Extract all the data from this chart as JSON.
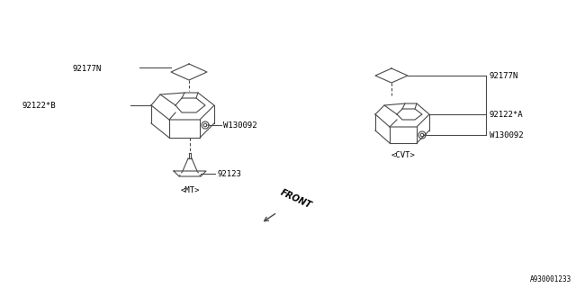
{
  "bg_color": "#ffffff",
  "line_color": "#4a4a4a",
  "text_color": "#000000",
  "font_size": 6.5,
  "diagram_number": "A930001233",
  "labels": {
    "mt": "<MT>",
    "cvt": "<CVT>",
    "front": "FRONT",
    "92177N_mt": "92177N",
    "92122B_mt": "92122*B",
    "W130092_mt": "W130092",
    "92123_mt": "92123",
    "92177N_cvt": "92177N",
    "92122A_cvt": "92122*A",
    "W130092_cvt": "W130092"
  }
}
